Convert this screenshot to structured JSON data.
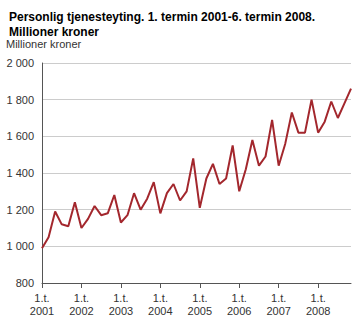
{
  "chart_data": {
    "type": "line",
    "title": "Personlig tjenesteyting. 1. termin 2001-6. termin 2008.\nMillioner kroner",
    "y_label": "Millioner kroner",
    "categories": [
      "1.t.\n2001",
      null,
      null,
      null,
      null,
      null,
      "1.t.\n2002",
      null,
      null,
      null,
      null,
      null,
      "1.t.\n2003",
      null,
      null,
      null,
      null,
      null,
      "1.t.\n2004",
      null,
      null,
      null,
      null,
      null,
      "1.t.\n2005",
      null,
      null,
      null,
      null,
      null,
      "1.t.\n2006",
      null,
      null,
      null,
      null,
      null,
      "1.t.\n2007",
      null,
      null,
      null,
      null,
      null,
      "1.t.\n2008",
      null,
      null,
      null,
      null,
      null
    ],
    "values": [
      990,
      1050,
      1190,
      1120,
      1110,
      1240,
      1100,
      1150,
      1220,
      1170,
      1180,
      1280,
      1130,
      1170,
      1290,
      1200,
      1260,
      1350,
      1180,
      1290,
      1340,
      1250,
      1300,
      1480,
      1210,
      1370,
      1450,
      1340,
      1370,
      1550,
      1300,
      1420,
      1580,
      1440,
      1490,
      1690,
      1440,
      1560,
      1730,
      1620,
      1620,
      1800,
      1620,
      1680,
      1790,
      1700,
      1780,
      1860
    ],
    "color": "#a3272d",
    "ylim": [
      800,
      2000
    ],
    "yticks": [
      800,
      {
        "value": 1000,
        "label": "1 000"
      },
      {
        "value": 1200,
        "label": "1 200"
      },
      {
        "value": 1400,
        "label": "1 400"
      },
      {
        "value": 1600,
        "label": "1 600"
      },
      {
        "value": 1800,
        "label": "1 800"
      },
      {
        "value": 2000,
        "label": "2 000"
      }
    ],
    "grid": true
  }
}
